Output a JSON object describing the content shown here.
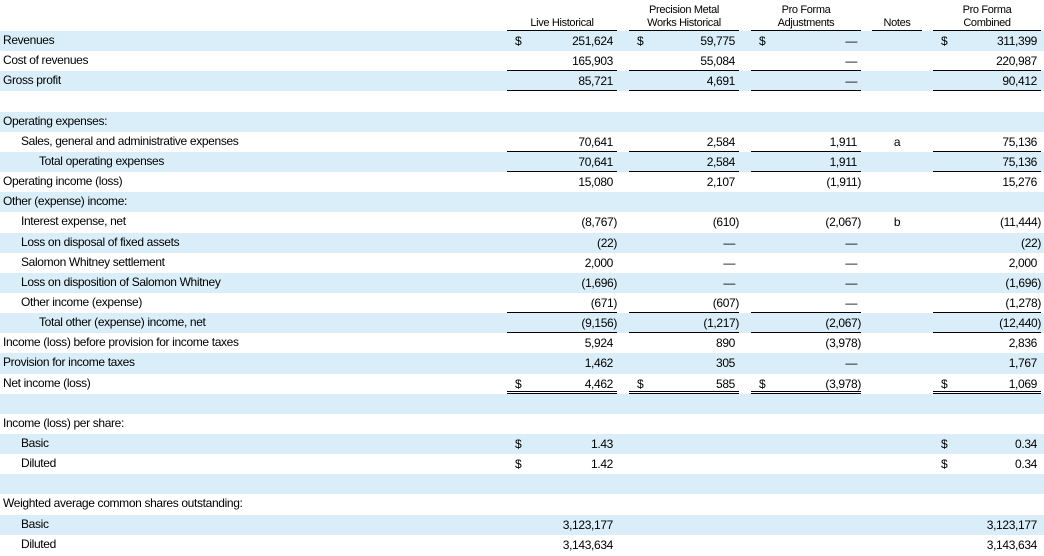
{
  "table": {
    "columns": [
      {
        "lines": [
          "Live Historical"
        ]
      },
      {
        "lines": [
          "Precision Metal",
          "Works Historical"
        ]
      },
      {
        "lines": [
          "Pro Forma",
          "Adjustments"
        ]
      },
      {
        "lines": [
          "Notes"
        ]
      },
      {
        "lines": [
          "Pro Forma",
          "Combined"
        ]
      }
    ],
    "rows": [
      {
        "label": "Revenues",
        "cells": [
          {
            "cur": "$",
            "v": "251,624"
          },
          {
            "cur": "$",
            "v": "59,775"
          },
          {
            "cur": "$",
            "v": "—"
          },
          null,
          {
            "cur": "$",
            "v": "311,399"
          }
        ]
      },
      {
        "label": "Cost of revenues",
        "cells": [
          {
            "v": "165,903"
          },
          {
            "v": "55,084"
          },
          {
            "v": "—"
          },
          null,
          {
            "v": "220,987"
          }
        ]
      },
      {
        "label": "Gross profit",
        "cells": [
          {
            "v": "85,721"
          },
          {
            "v": "4,691"
          },
          {
            "v": "—"
          },
          null,
          {
            "v": "90,412"
          }
        ]
      },
      {
        "label": null,
        "cells": null
      },
      {
        "label": "Operating expenses:",
        "cells": null
      },
      {
        "label": "Sales, general and administrative expenses",
        "indent": 1,
        "cells": [
          {
            "v": "70,641"
          },
          {
            "v": "2,584"
          },
          {
            "v": "1,911"
          },
          {
            "v": "a"
          },
          {
            "v": "75,136"
          }
        ]
      },
      {
        "label": "Total operating expenses",
        "indent": 2,
        "cells": [
          {
            "v": "70,641"
          },
          {
            "v": "2,584"
          },
          {
            "v": "1,911"
          },
          null,
          {
            "v": "75,136"
          }
        ]
      },
      {
        "label": "Operating income (loss)",
        "cells": [
          {
            "v": "15,080"
          },
          {
            "v": "2,107"
          },
          {
            "v": "(1,911)"
          },
          null,
          {
            "v": "15,276"
          }
        ]
      },
      {
        "label": "Other (expense) income:",
        "cells": null
      },
      {
        "label": "Interest expense, net",
        "indent": 1,
        "cells": [
          {
            "v": "(8,767)"
          },
          {
            "v": "(610)"
          },
          {
            "v": "(2,067)"
          },
          {
            "v": "b"
          },
          {
            "v": "(11,444)"
          }
        ]
      },
      {
        "label": "Loss on disposal of fixed assets",
        "indent": 1,
        "cells": [
          {
            "v": "(22)"
          },
          {
            "v": "—"
          },
          {
            "v": "—"
          },
          null,
          {
            "v": "(22)"
          }
        ]
      },
      {
        "label": "Salomon Whitney settlement",
        "indent": 1,
        "cells": [
          {
            "v": "2,000"
          },
          {
            "v": "—"
          },
          {
            "v": "—"
          },
          null,
          {
            "v": "2,000"
          }
        ]
      },
      {
        "label": "Loss on disposition of Salomon Whitney",
        "indent": 1,
        "cells": [
          {
            "v": "(1,696)"
          },
          {
            "v": "—"
          },
          {
            "v": "—"
          },
          null,
          {
            "v": "(1,696)"
          }
        ]
      },
      {
        "label": "Other income (expense)",
        "indent": 1,
        "cells": [
          {
            "v": "(671)"
          },
          {
            "v": "(607)"
          },
          {
            "v": "—"
          },
          null,
          {
            "v": "(1,278)"
          }
        ]
      },
      {
        "label": "Total other (expense) income, net",
        "indent": 2,
        "cells": [
          {
            "v": "(9,156)"
          },
          {
            "v": "(1,217)"
          },
          {
            "v": "(2,067)"
          },
          null,
          {
            "v": "(12,440)"
          }
        ]
      },
      {
        "label": "Income (loss) before provision for income taxes",
        "cells": [
          {
            "v": "5,924"
          },
          {
            "v": "890"
          },
          {
            "v": "(3,978)"
          },
          null,
          {
            "v": "2,836"
          }
        ]
      },
      {
        "label": "Provision for income taxes",
        "cells": [
          {
            "v": "1,462"
          },
          {
            "v": "305"
          },
          {
            "v": "—"
          },
          null,
          {
            "v": "1,767"
          }
        ]
      },
      {
        "label": "Net income (loss)",
        "cells": [
          {
            "cur": "$",
            "v": "4,462"
          },
          {
            "cur": "$",
            "v": "585"
          },
          {
            "cur": "$",
            "v": "(3,978)"
          },
          null,
          {
            "cur": "$",
            "v": "1,069"
          }
        ]
      },
      {
        "label": null,
        "cells": null
      },
      {
        "label": "Income (loss) per share:",
        "cells": null
      },
      {
        "label": "Basic",
        "indent": 1,
        "cells": [
          {
            "cur": "$",
            "v": "1.43"
          },
          null,
          null,
          null,
          {
            "cur": "$",
            "v": "0.34"
          }
        ]
      },
      {
        "label": "Diluted",
        "indent": 1,
        "cells": [
          {
            "cur": "$",
            "v": "1.42"
          },
          null,
          null,
          null,
          {
            "cur": "$",
            "v": "0.34"
          }
        ]
      },
      {
        "label": null,
        "cells": null
      },
      {
        "label": "Weighted average common shares outstanding:",
        "cells": null
      },
      {
        "label": "Basic",
        "indent": 1,
        "cells": [
          {
            "v": "3,123,177"
          },
          null,
          null,
          null,
          {
            "v": "3,123,177"
          }
        ]
      },
      {
        "label": "Diluted",
        "indent": 1,
        "cells": [
          {
            "v": "3,143,634"
          },
          null,
          null,
          null,
          {
            "v": "3,143,634"
          }
        ]
      }
    ]
  }
}
